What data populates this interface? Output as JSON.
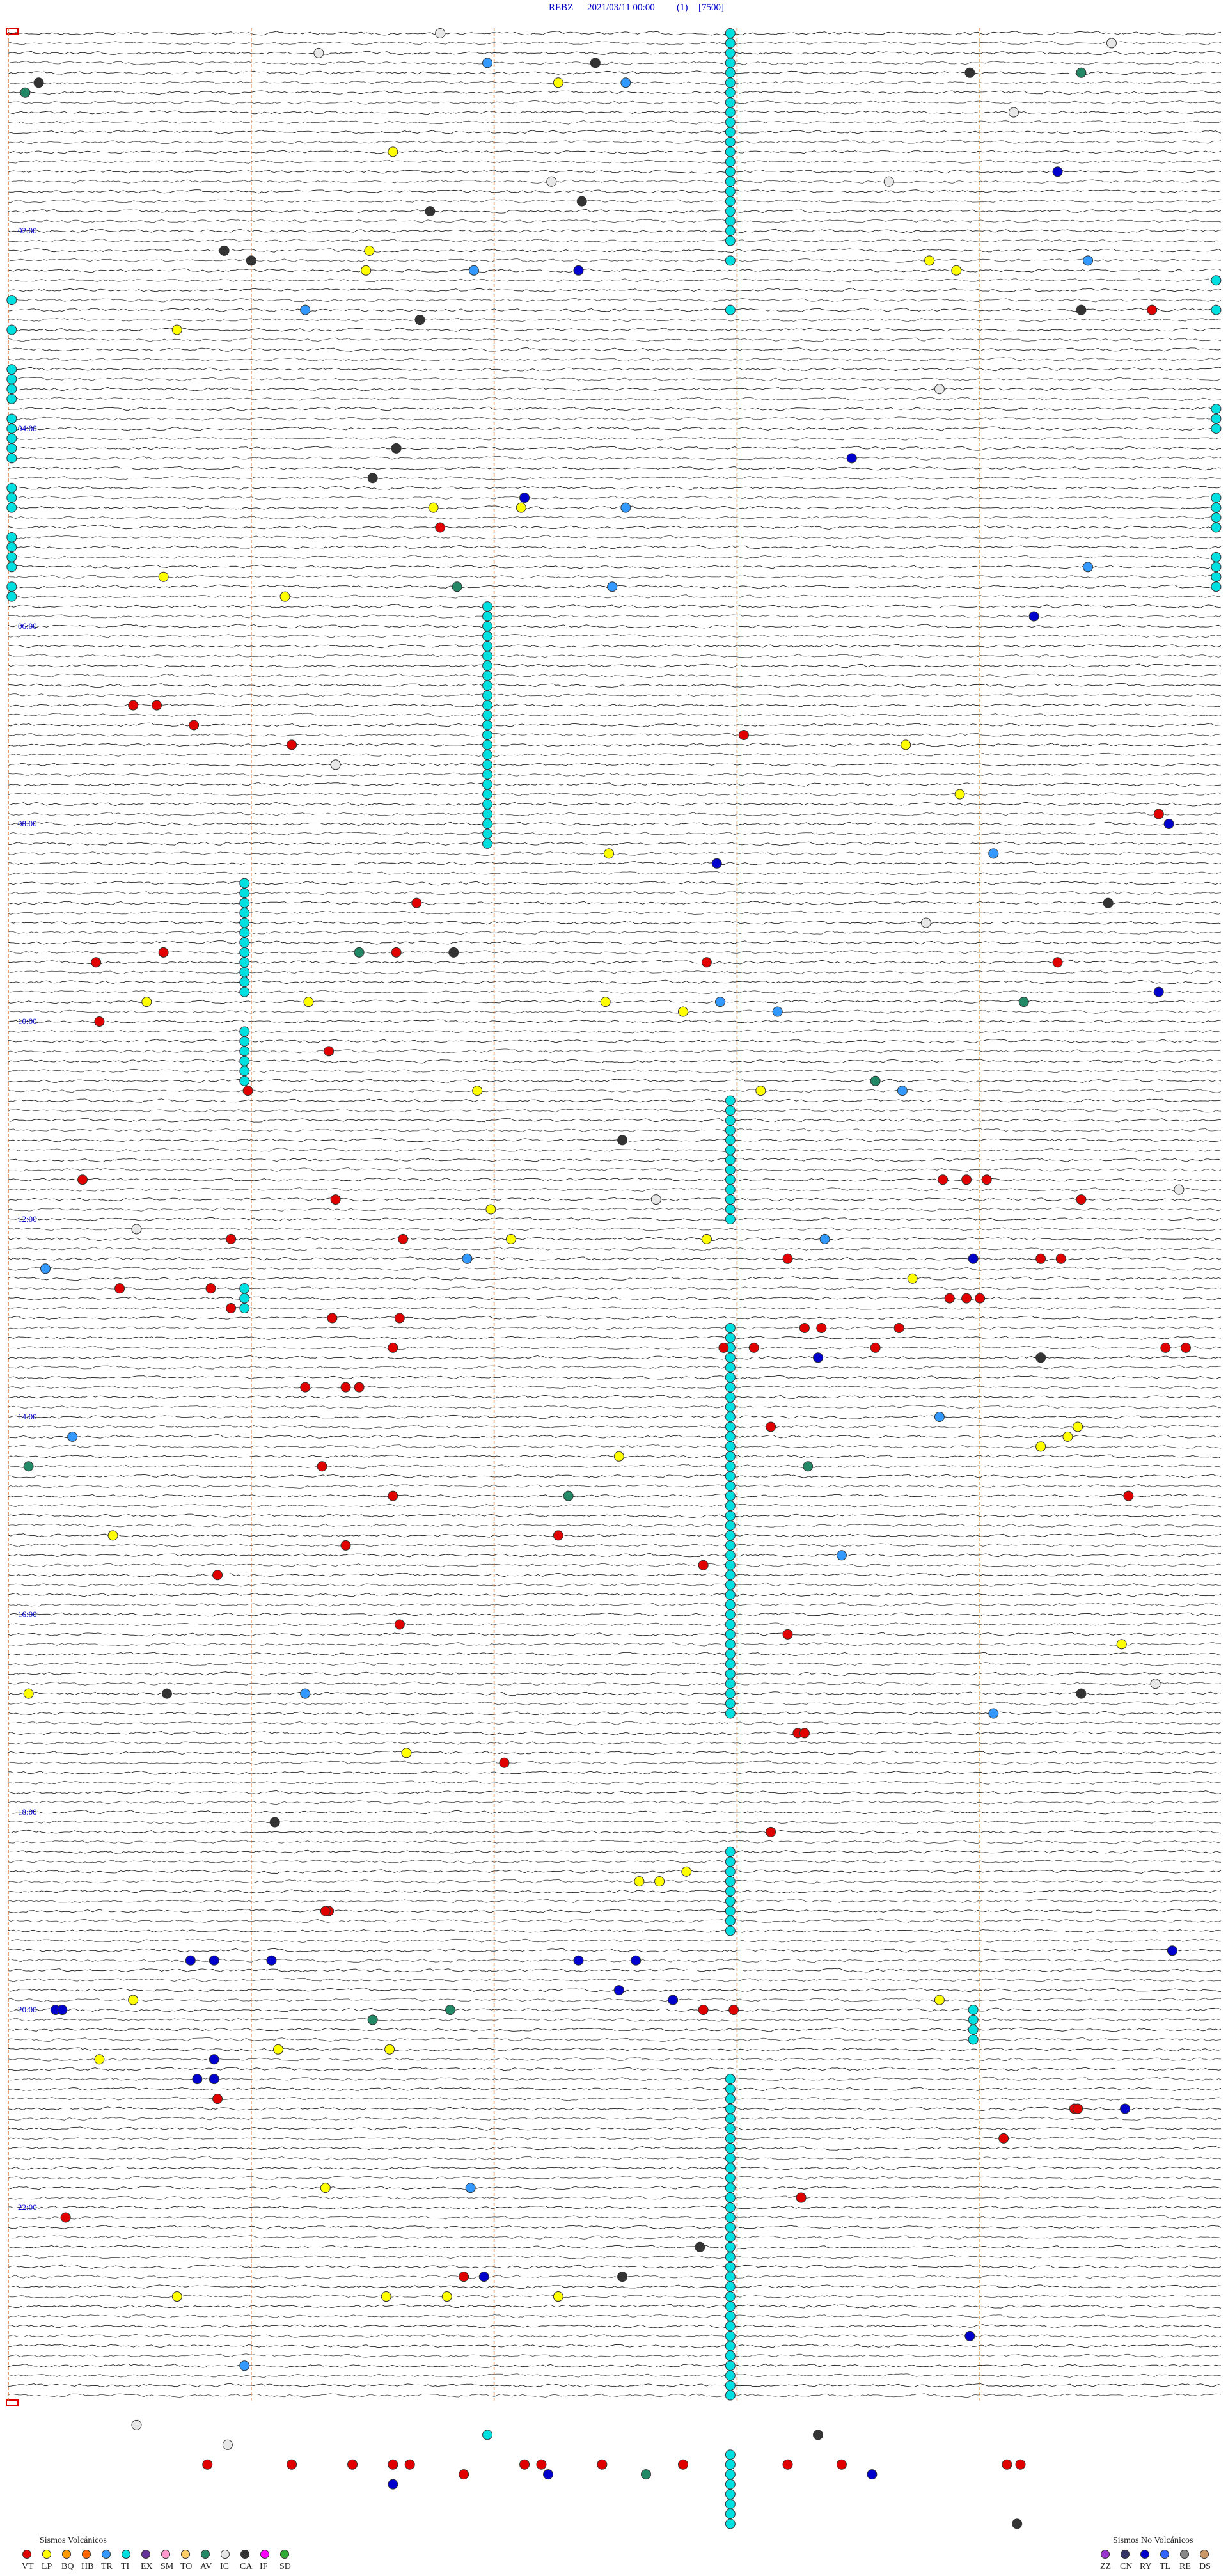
{
  "header": {
    "station": "REBZ",
    "datetime": "2021/03/11 00:00",
    "channel": "(1)",
    "scale": "[7500]"
  },
  "hour_labels": [
    "02:00",
    "04:00",
    "06:00",
    "08:00",
    "10:00",
    "12:00",
    "14:00",
    "16:00",
    "18:00",
    "20:00",
    "22:00"
  ],
  "legend": {
    "volcanic": {
      "title": "Sismos Volcánicos",
      "items": [
        {
          "code": "VT",
          "color": "#e00000"
        },
        {
          "code": "LP",
          "color": "#ffff00"
        },
        {
          "code": "BQ",
          "color": "#ff9900"
        },
        {
          "code": "HB",
          "color": "#ff6600"
        },
        {
          "code": "TR",
          "color": "#3399ff"
        },
        {
          "code": "TI",
          "color": "#00e0e0"
        },
        {
          "code": "EX",
          "color": "#663399"
        },
        {
          "code": "SM",
          "color": "#ff99cc"
        },
        {
          "code": "TO",
          "color": "#ffcc66"
        },
        {
          "code": "AV",
          "color": "#228866"
        },
        {
          "code": "IC",
          "color": "#e8e8e8"
        },
        {
          "code": "CA",
          "color": "#333333"
        },
        {
          "code": "IF",
          "color": "#ff00ff"
        },
        {
          "code": "SD",
          "color": "#33aa33"
        }
      ]
    },
    "non_volcanic": {
      "title": "Sismos No Volcánicos",
      "items": [
        {
          "code": "ZZ",
          "color": "#9933cc"
        },
        {
          "code": "CN",
          "color": "#333366"
        },
        {
          "code": "RY",
          "color": "#0000cc"
        },
        {
          "code": "TL",
          "color": "#3366ff"
        },
        {
          "code": "RE",
          "color": "#888888"
        },
        {
          "code": "DS",
          "color": "#cc9966"
        }
      ]
    }
  },
  "events": [
    [
      "TI",
      0,
      214,
      22
    ],
    [
      "TI",
      23,
      214
    ],
    [
      "TI",
      28,
      214
    ],
    [
      "TI",
      58,
      142,
      25
    ],
    [
      "TI",
      86,
      70,
      12
    ],
    [
      "TI",
      101,
      70,
      6
    ],
    [
      "TI",
      108,
      214,
      13
    ],
    [
      "TI",
      127,
      70,
      3
    ],
    [
      "TI",
      131,
      214,
      40
    ],
    [
      "TI",
      184,
      214,
      9
    ],
    [
      "TI",
      200,
      286,
      4
    ],
    [
      "TI",
      207,
      214,
      33
    ],
    [
      "TI",
      27,
      1
    ],
    [
      "TI",
      30,
      1
    ],
    [
      "TI",
      34,
      1,
      4
    ],
    [
      "TI",
      39,
      1,
      5
    ],
    [
      "TI",
      46,
      1,
      3
    ],
    [
      "TI",
      51,
      1,
      4
    ],
    [
      "TI",
      56,
      1,
      2
    ],
    [
      "TI",
      25,
      358
    ],
    [
      "TI",
      28,
      358
    ],
    [
      "TI",
      38,
      358,
      3
    ],
    [
      "TI",
      47,
      358,
      4
    ],
    [
      "TI",
      53,
      358,
      4
    ],
    [
      "VT",
      68,
      37
    ],
    [
      "VT",
      68,
      44
    ],
    [
      "VT",
      70,
      55
    ],
    [
      "VT",
      72,
      84
    ],
    [
      "VT",
      71,
      218
    ],
    [
      "VT",
      50,
      128
    ],
    [
      "VT",
      28,
      339
    ],
    [
      "VT",
      79,
      341
    ],
    [
      "VT",
      88,
      121
    ],
    [
      "VT",
      93,
      115
    ],
    [
      "VT",
      93,
      46
    ],
    [
      "VT",
      94,
      26
    ],
    [
      "VT",
      94,
      207
    ],
    [
      "VT",
      94,
      311
    ],
    [
      "VT",
      100,
      27
    ],
    [
      "VT",
      103,
      95
    ],
    [
      "VT",
      107,
      71
    ],
    [
      "VT",
      116,
      22
    ],
    [
      "VT",
      116,
      277
    ],
    [
      "VT",
      116,
      284
    ],
    [
      "VT",
      116,
      290
    ],
    [
      "VT",
      118,
      97
    ],
    [
      "VT",
      118,
      318
    ],
    [
      "VT",
      122,
      66
    ],
    [
      "VT",
      122,
      117
    ],
    [
      "VT",
      124,
      231
    ],
    [
      "VT",
      127,
      60
    ],
    [
      "VT",
      127,
      33
    ],
    [
      "VT",
      124,
      306
    ],
    [
      "VT",
      124,
      312
    ],
    [
      "VT",
      128,
      279
    ],
    [
      "VT",
      128,
      284
    ],
    [
      "VT",
      128,
      288
    ],
    [
      "VT",
      129,
      66
    ],
    [
      "VT",
      130,
      96
    ],
    [
      "VT",
      130,
      116
    ],
    [
      "VT",
      131,
      236
    ],
    [
      "VT",
      131,
      241
    ],
    [
      "VT",
      133,
      212
    ],
    [
      "VT",
      133,
      221
    ],
    [
      "VT",
      131,
      264
    ],
    [
      "VT",
      133,
      114
    ],
    [
      "VT",
      133,
      257
    ],
    [
      "VT",
      133,
      343
    ],
    [
      "VT",
      133,
      349
    ],
    [
      "VT",
      137,
      100
    ],
    [
      "VT",
      137,
      104
    ],
    [
      "VT",
      137,
      88
    ],
    [
      "VT",
      141,
      226
    ],
    [
      "VT",
      145,
      93
    ],
    [
      "VT",
      148,
      114
    ],
    [
      "VT",
      148,
      332
    ],
    [
      "VT",
      153,
      100
    ],
    [
      "VT",
      152,
      163
    ],
    [
      "VT",
      156,
      62
    ],
    [
      "VT",
      155,
      206
    ],
    [
      "VT",
      161,
      116
    ],
    [
      "VT",
      162,
      231
    ],
    [
      "VT",
      172,
      234
    ],
    [
      "VT",
      172,
      236
    ],
    [
      "VT",
      175,
      147
    ],
    [
      "VT",
      182,
      226
    ],
    [
      "VT",
      190,
      95
    ],
    [
      "VT",
      190,
      94
    ],
    [
      "VT",
      200,
      206
    ],
    [
      "VT",
      200,
      215
    ],
    [
      "VT",
      209,
      62
    ],
    [
      "VT",
      210,
      316
    ],
    [
      "VT",
      210,
      317
    ],
    [
      "VT",
      219,
      235
    ],
    [
      "VT",
      221,
      17
    ],
    [
      "VT",
      227,
      135
    ],
    [
      "VT",
      213,
      295
    ],
    [
      "LP",
      12,
      114
    ],
    [
      "LP",
      22,
      107
    ],
    [
      "LP",
      24,
      106
    ],
    [
      "LP",
      30,
      50
    ],
    [
      "LP",
      48,
      126
    ],
    [
      "LP",
      48,
      152
    ],
    [
      "LP",
      55,
      46
    ],
    [
      "LP",
      57,
      82
    ],
    [
      "LP",
      83,
      178
    ],
    [
      "LP",
      98,
      41
    ],
    [
      "LP",
      98,
      89
    ],
    [
      "LP",
      98,
      177
    ],
    [
      "LP",
      99,
      200
    ],
    [
      "LP",
      107,
      139
    ],
    [
      "LP",
      107,
      223
    ],
    [
      "LP",
      77,
      282
    ],
    [
      "LP",
      72,
      266
    ],
    [
      "LP",
      23,
      273
    ],
    [
      "LP",
      24,
      281
    ],
    [
      "LP",
      5,
      163
    ],
    [
      "LP",
      119,
      143
    ],
    [
      "LP",
      122,
      149
    ],
    [
      "LP",
      122,
      207
    ],
    [
      "LP",
      126,
      268
    ],
    [
      "LP",
      143,
      306
    ],
    [
      "LP",
      142,
      314
    ],
    [
      "LP",
      141,
      317
    ],
    [
      "LP",
      144,
      181
    ],
    [
      "LP",
      152,
      31
    ],
    [
      "LP",
      168,
      6
    ],
    [
      "LP",
      174,
      118
    ],
    [
      "LP",
      186,
      201
    ],
    [
      "LP",
      187,
      187
    ],
    [
      "LP",
      187,
      193
    ],
    [
      "LP",
      199,
      276
    ],
    [
      "LP",
      199,
      37
    ],
    [
      "LP",
      204,
      80
    ],
    [
      "LP",
      204,
      113
    ],
    [
      "LP",
      205,
      27
    ],
    [
      "LP",
      218,
      94
    ],
    [
      "LP",
      229,
      130
    ],
    [
      "LP",
      229,
      163
    ],
    [
      "LP",
      229,
      112
    ],
    [
      "LP",
      229,
      50
    ],
    [
      "LP",
      163,
      330
    ],
    [
      "TR",
      3,
      142
    ],
    [
      "TR",
      5,
      183
    ],
    [
      "TR",
      24,
      138
    ],
    [
      "TR",
      28,
      88
    ],
    [
      "TR",
      48,
      183
    ],
    [
      "TR",
      56,
      179
    ],
    [
      "TR",
      54,
      320
    ],
    [
      "TR",
      23,
      320
    ],
    [
      "TR",
      83,
      292
    ],
    [
      "TR",
      98,
      211
    ],
    [
      "TR",
      99,
      228
    ],
    [
      "TR",
      107,
      265
    ],
    [
      "TR",
      124,
      136
    ],
    [
      "TR",
      122,
      242
    ],
    [
      "TR",
      125,
      11
    ],
    [
      "TR",
      140,
      276
    ],
    [
      "TR",
      142,
      19
    ],
    [
      "TR",
      154,
      247
    ],
    [
      "TR",
      168,
      88
    ],
    [
      "TR",
      170,
      292
    ],
    [
      "TR",
      218,
      137
    ],
    [
      "TR",
      236,
      70
    ],
    [
      "RY",
      14,
      311
    ],
    [
      "RY",
      24,
      169
    ],
    [
      "RY",
      43,
      250
    ],
    [
      "RY",
      47,
      153
    ],
    [
      "RY",
      59,
      304
    ],
    [
      "RY",
      84,
      210
    ],
    [
      "RY",
      80,
      344
    ],
    [
      "RY",
      97,
      341
    ],
    [
      "RY",
      124,
      286
    ],
    [
      "RY",
      134,
      240
    ],
    [
      "RY",
      194,
      345
    ],
    [
      "RY",
      195,
      61
    ],
    [
      "RY",
      195,
      54
    ],
    [
      "RY",
      195,
      78
    ],
    [
      "RY",
      195,
      169
    ],
    [
      "RY",
      195,
      186
    ],
    [
      "RY",
      200,
      14
    ],
    [
      "RY",
      200,
      16
    ],
    [
      "RY",
      199,
      197
    ],
    [
      "RY",
      198,
      181
    ],
    [
      "RY",
      205,
      61
    ],
    [
      "RY",
      207,
      56
    ],
    [
      "RY",
      207,
      61
    ],
    [
      "RY",
      210,
      331
    ],
    [
      "RY",
      227,
      141
    ],
    [
      "RY",
      233,
      285
    ],
    [
      "IC",
      0,
      128
    ],
    [
      "IC",
      2,
      92
    ],
    [
      "IC",
      1,
      327
    ],
    [
      "IC",
      15,
      261
    ],
    [
      "IC",
      15,
      161
    ],
    [
      "IC",
      8,
      298
    ],
    [
      "IC",
      36,
      276
    ],
    [
      "IC",
      74,
      97
    ],
    [
      "IC",
      90,
      272
    ],
    [
      "IC",
      117,
      347
    ],
    [
      "IC",
      118,
      192
    ],
    [
      "IC",
      121,
      38
    ],
    [
      "IC",
      167,
      340
    ],
    [
      "CA",
      5,
      9
    ],
    [
      "CA",
      3,
      174
    ],
    [
      "CA",
      4,
      285
    ],
    [
      "CA",
      18,
      125
    ],
    [
      "CA",
      22,
      64
    ],
    [
      "CA",
      23,
      72
    ],
    [
      "CA",
      42,
      115
    ],
    [
      "CA",
      29,
      122
    ],
    [
      "CA",
      45,
      108
    ],
    [
      "CA",
      17,
      170
    ],
    [
      "CA",
      28,
      318
    ],
    [
      "CA",
      112,
      182
    ],
    [
      "CA",
      134,
      306
    ],
    [
      "CA",
      93,
      132
    ],
    [
      "CA",
      88,
      326
    ],
    [
      "CA",
      168,
      47
    ],
    [
      "CA",
      168,
      318
    ],
    [
      "CA",
      224,
      205
    ],
    [
      "CA",
      227,
      182
    ],
    [
      "CA",
      181,
      79
    ],
    [
      "AV",
      4,
      318
    ],
    [
      "AV",
      56,
      133
    ],
    [
      "AV",
      93,
      104
    ],
    [
      "AV",
      98,
      301
    ],
    [
      "AV",
      106,
      257
    ],
    [
      "AV",
      145,
      237
    ],
    [
      "AV",
      148,
      166
    ],
    [
      "AV",
      145,
      6
    ],
    [
      "AV",
      201,
      108
    ],
    [
      "AV",
      200,
      131
    ],
    [
      "AV",
      6,
      5
    ],
    [
      "TI",
      245,
      214,
      8
    ],
    [
      "VT",
      246,
      59
    ],
    [
      "VT",
      246,
      84
    ],
    [
      "VT",
      246,
      102
    ],
    [
      "VT",
      246,
      114
    ],
    [
      "VT",
      246,
      119
    ],
    [
      "VT",
      247,
      135
    ],
    [
      "VT",
      246,
      153
    ],
    [
      "VT",
      246,
      158
    ],
    [
      "VT",
      246,
      176
    ],
    [
      "VT",
      246,
      200
    ],
    [
      "VT",
      246,
      231
    ],
    [
      "VT",
      246,
      247
    ],
    [
      "VT",
      246,
      296
    ],
    [
      "VT",
      246,
      300
    ],
    [
      "IC",
      244,
      65
    ],
    [
      "IC",
      242,
      38
    ],
    [
      "TI",
      243,
      142
    ],
    [
      "CA",
      243,
      240
    ],
    [
      "RY",
      247,
      256
    ],
    [
      "RY",
      247,
      160
    ],
    [
      "RY",
      248,
      114
    ],
    [
      "CA",
      252,
      299
    ],
    [
      "AV",
      247,
      189
    ]
  ]
}
